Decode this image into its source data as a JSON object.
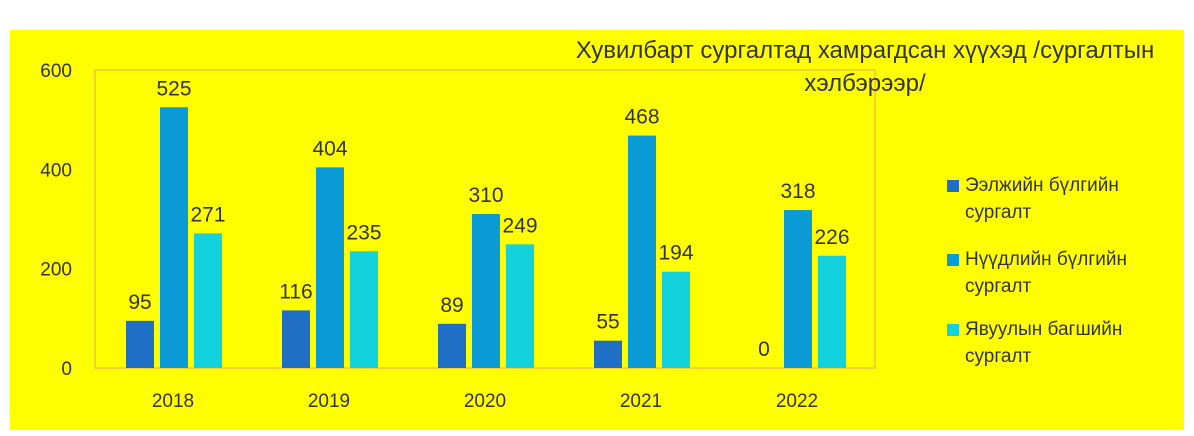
{
  "chart_data": {
    "type": "bar",
    "title": "Хувилбарт сургалтад хамрагдсан хүүхэд /сургалтын хэлбэрээр/",
    "categories": [
      "2018",
      "2019",
      "2020",
      "2021",
      "2022"
    ],
    "series": [
      {
        "name": "Ээлжийн бүлгийн сургалт",
        "color": "#1f6fc6",
        "values": [
          95,
          116,
          89,
          55,
          0
        ]
      },
      {
        "name": "Нүүдлийн бүлгийн сургалт",
        "color": "#0a9ad6",
        "values": [
          525,
          404,
          310,
          468,
          318
        ]
      },
      {
        "name": "Явуулын багшийн сургалт",
        "color": "#14d2dc",
        "values": [
          271,
          235,
          249,
          194,
          226
        ]
      }
    ],
    "ylim": [
      0,
      600
    ],
    "yticks": [
      0,
      200,
      400,
      600
    ],
    "grid": false,
    "legend": "right"
  }
}
